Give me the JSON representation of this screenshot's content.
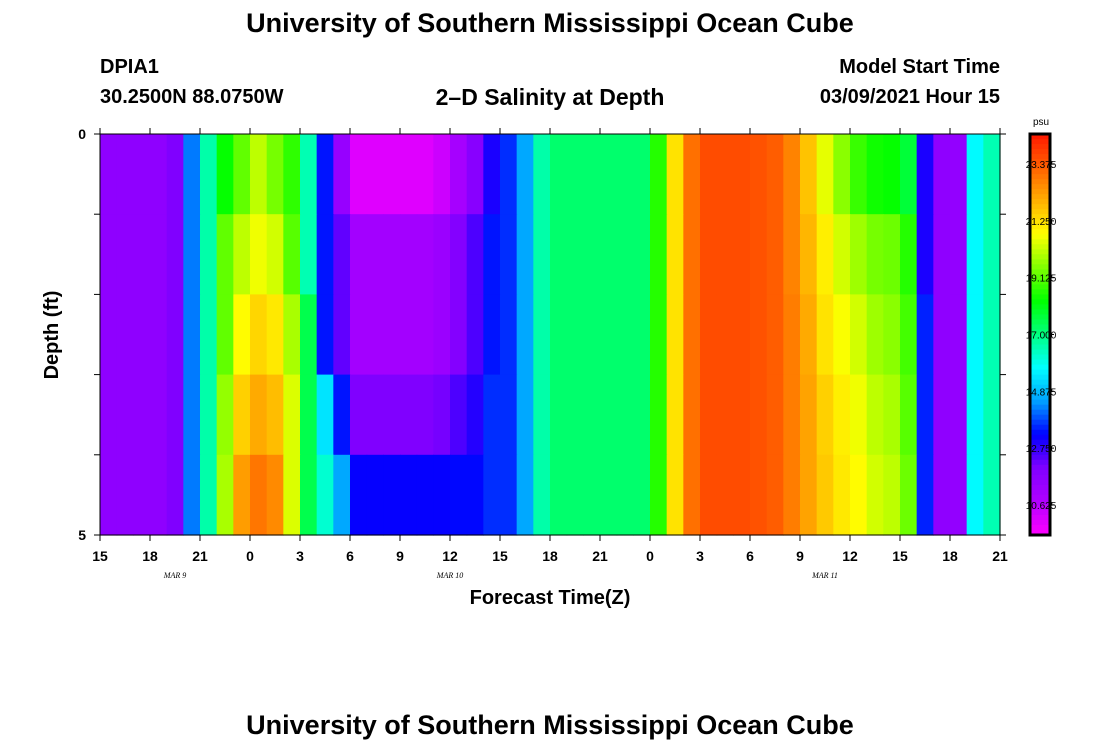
{
  "header": {
    "title": "University of Southern Mississippi Ocean Cube",
    "station_id": "DPIA1",
    "coordinates": "30.2500N 88.0750W",
    "plot_title": "2–D Salinity at Depth",
    "model_start_label": "Model Start Time",
    "model_start_value": "03/09/2021 Hour 15"
  },
  "footer": {
    "title": "University of Southern Mississippi Ocean Cube"
  },
  "chart_data": {
    "type": "heatmap",
    "title": "2–D Salinity at Depth",
    "xlabel": "Forecast Time(Z)",
    "ylabel": "Depth (ft)",
    "x_tick_labels": [
      "15",
      "18",
      "21",
      "0",
      "3",
      "6",
      "9",
      "12",
      "15",
      "18",
      "21",
      "0",
      "3",
      "6",
      "9",
      "12",
      "15",
      "18",
      "21"
    ],
    "date_labels": [
      {
        "text": "MAR  9",
        "at_hour": 4.5
      },
      {
        "text": "MAR  10",
        "at_hour": 21
      },
      {
        "text": "MAR  11",
        "at_hour": 43.5
      }
    ],
    "y_tick_labels": [
      "0",
      "5"
    ],
    "ylim": [
      0,
      5
    ],
    "xlim_hours": [
      0,
      54
    ],
    "colorbar": {
      "unit": "psu",
      "range": [
        9.5,
        24.5
      ],
      "labels": [
        "23.375",
        "21.250",
        "19.125",
        "17.000",
        "14.875",
        "12.750",
        "10.625"
      ],
      "label_values": [
        23.375,
        21.25,
        19.125,
        17.0,
        14.875,
        12.75,
        10.625
      ],
      "colors": [
        "#ff00ff",
        "#b000ff",
        "#8000ff",
        "#0000ff",
        "#00a0ff",
        "#00ffff",
        "#00ff80",
        "#00ff00",
        "#80ff00",
        "#ffff00",
        "#ffb000",
        "#ff6000",
        "#ff1800"
      ]
    },
    "depth_rows": [
      0,
      1,
      2,
      3,
      4
    ],
    "time_hours": [
      0,
      1,
      2,
      3,
      4,
      5,
      6,
      7,
      8,
      9,
      10,
      11,
      12,
      13,
      14,
      15,
      16,
      17,
      18,
      19,
      20,
      21,
      22,
      23,
      24,
      25,
      26,
      27,
      28,
      29,
      30,
      31,
      32,
      33,
      34,
      35,
      36,
      37,
      38,
      39,
      40,
      41,
      42,
      43,
      44,
      45,
      46,
      47,
      48,
      49,
      50,
      51,
      52,
      53
    ],
    "salinity": [
      [
        11.6,
        11.6,
        11.6,
        11.6,
        12.0,
        14.2,
        16.6,
        18.3,
        19.2,
        20.1,
        19.4,
        18.7,
        16.5,
        13.4,
        11.4,
        10.0,
        10.0,
        10.0,
        10.0,
        10.0,
        10.3,
        11.0,
        11.8,
        13.0,
        13.6,
        14.6,
        16.6,
        17.2,
        17.2,
        17.2,
        17.2,
        17.2,
        17.2,
        18.6,
        21.2,
        23.0,
        23.6,
        23.6,
        23.6,
        23.5,
        23.3,
        22.7,
        21.7,
        20.5,
        19.6,
        18.8,
        18.4,
        18.3,
        17.7,
        13.0,
        11.6,
        11.5,
        15.7,
        16.5
      ],
      [
        11.6,
        11.6,
        11.6,
        11.6,
        12.0,
        14.2,
        16.6,
        19.2,
        20.1,
        20.6,
        20.3,
        19.1,
        16.5,
        13.4,
        12.3,
        11.1,
        11.1,
        11.1,
        11.1,
        11.1,
        11.3,
        11.9,
        12.5,
        13.4,
        13.6,
        14.6,
        16.6,
        17.2,
        17.2,
        17.2,
        17.2,
        17.2,
        17.2,
        18.6,
        21.2,
        23.0,
        23.6,
        23.6,
        23.6,
        23.5,
        23.3,
        22.7,
        21.9,
        21.0,
        20.3,
        19.8,
        19.4,
        19.3,
        18.6,
        13.0,
        11.6,
        11.5,
        15.7,
        16.5
      ],
      [
        11.6,
        11.6,
        11.6,
        11.6,
        12.0,
        14.2,
        16.6,
        19.2,
        20.8,
        21.4,
        21.1,
        19.9,
        17.5,
        13.4,
        12.3,
        11.1,
        11.1,
        11.1,
        11.1,
        11.1,
        11.3,
        11.9,
        12.5,
        13.4,
        13.6,
        14.6,
        16.6,
        17.2,
        17.2,
        17.2,
        17.2,
        17.2,
        17.2,
        18.6,
        21.2,
        23.0,
        23.6,
        23.6,
        23.6,
        23.5,
        23.3,
        22.8,
        22.1,
        21.2,
        20.7,
        20.3,
        19.8,
        19.6,
        18.9,
        13.5,
        11.6,
        11.5,
        15.7,
        16.5
      ],
      [
        11.6,
        11.6,
        11.6,
        11.6,
        12.0,
        14.2,
        16.6,
        19.7,
        21.5,
        22.1,
        21.8,
        20.4,
        17.5,
        15.4,
        13.4,
        12.0,
        12.0,
        12.0,
        12.0,
        12.0,
        12.1,
        12.5,
        12.9,
        13.6,
        13.6,
        14.6,
        16.6,
        17.2,
        17.2,
        17.2,
        17.2,
        17.2,
        17.2,
        18.6,
        21.2,
        23.0,
        23.6,
        23.6,
        23.6,
        23.5,
        23.3,
        22.8,
        22.2,
        21.5,
        21.0,
        20.6,
        20.1,
        19.9,
        19.1,
        13.5,
        11.6,
        11.5,
        15.7,
        16.5
      ],
      [
        11.6,
        11.6,
        11.6,
        11.6,
        12.0,
        14.2,
        16.6,
        19.9,
        22.3,
        22.9,
        22.6,
        20.4,
        17.5,
        16.2,
        14.6,
        13.2,
        13.2,
        13.2,
        13.2,
        13.2,
        13.2,
        13.3,
        13.3,
        13.6,
        13.6,
        14.6,
        16.6,
        17.2,
        17.2,
        17.2,
        17.2,
        17.2,
        17.2,
        18.6,
        21.2,
        23.0,
        23.6,
        23.6,
        23.6,
        23.5,
        23.3,
        22.8,
        22.2,
        21.6,
        21.1,
        20.8,
        20.3,
        20.1,
        19.3,
        13.5,
        11.6,
        11.5,
        15.7,
        16.5
      ]
    ]
  }
}
